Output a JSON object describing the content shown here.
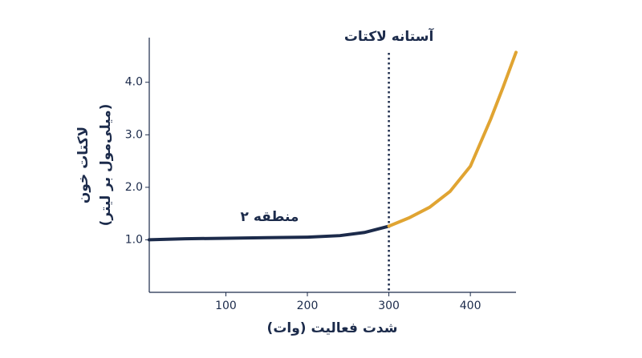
{
  "chart_data": {
    "type": "line",
    "xlabel": "شدت فعالیت (وات)",
    "ylabel": [
      "لاکتات خون",
      "(میلی‌مول بر لیتر)"
    ],
    "xlim": [
      6,
      456
    ],
    "ylim": [
      0,
      4.85
    ],
    "xticks": [
      100,
      200,
      300,
      400
    ],
    "yticks": [
      {
        "value": 1,
        "label": "1.0"
      },
      {
        "value": 2,
        "label": "2.0"
      },
      {
        "value": 3,
        "label": "3.0"
      },
      {
        "value": 4,
        "label": "4.0"
      }
    ],
    "series": [
      {
        "color": "#1c2b4b",
        "x": [
          6,
          50,
          100,
          150,
          200,
          240,
          270,
          300
        ],
        "values": [
          1.0,
          1.02,
          1.03,
          1.04,
          1.05,
          1.08,
          1.14,
          1.26
        ]
      },
      {
        "color": "#e0a432",
        "x": [
          300,
          325,
          350,
          375,
          400,
          425,
          440,
          456
        ],
        "values": [
          1.26,
          1.42,
          1.62,
          1.92,
          2.4,
          3.3,
          3.9,
          4.57
        ]
      }
    ],
    "vline": {
      "x": 300,
      "label": "آستانه لاکتات"
    },
    "annotations": [
      {
        "text": "منطقه ۲"
      }
    ]
  }
}
